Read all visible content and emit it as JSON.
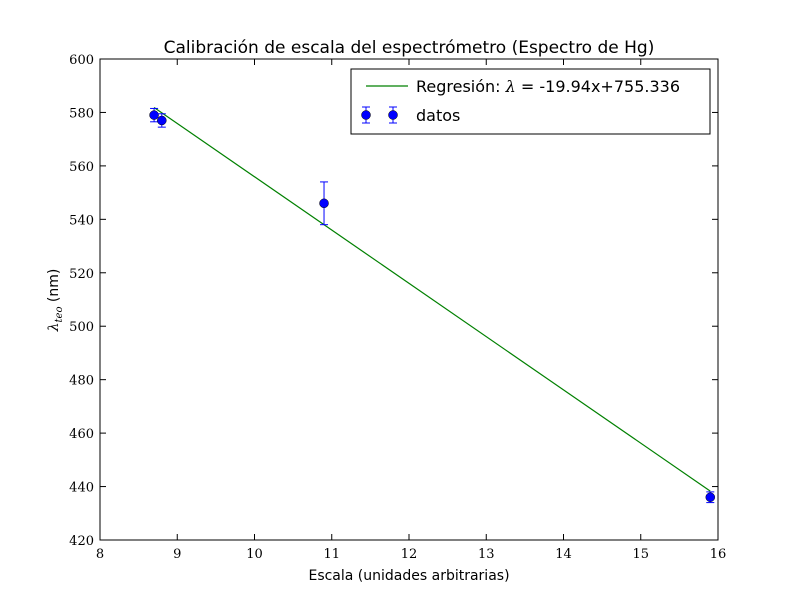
{
  "chart_data": {
    "type": "scatter",
    "title": "Calibración de escala del espectrómetro (Espectro de Hg)",
    "xlabel": "Escala (unidades arbitrarias)",
    "ylabel_symbol": "λ",
    "ylabel_subscript": "teo",
    "ylabel_unit": " (nm)",
    "xlim": [
      8,
      16
    ],
    "ylim": [
      420,
      600
    ],
    "xticks": [
      8,
      9,
      10,
      11,
      12,
      13,
      14,
      15,
      16
    ],
    "yticks": [
      420,
      440,
      460,
      480,
      500,
      520,
      540,
      560,
      580,
      600
    ],
    "grid": false,
    "legend_position": "top-right",
    "series": [
      {
        "name": "datos",
        "kind": "errorbar",
        "color": "#0000ff",
        "points": [
          {
            "x": 8.7,
            "y": 579,
            "err": 2.5
          },
          {
            "x": 8.8,
            "y": 577,
            "err": 2.5
          },
          {
            "x": 10.9,
            "y": 546,
            "err": 8
          },
          {
            "x": 15.9,
            "y": 436,
            "err": 2
          }
        ]
      },
      {
        "name": "Regresión: λ = -19.94x+755.336",
        "kind": "line",
        "color": "#008000",
        "slope": -19.94,
        "intercept": 755.336,
        "x_range": [
          8.7,
          15.9
        ]
      }
    ],
    "legend": [
      {
        "label_prefix": "Regresión: ",
        "label_symbol": "λ",
        "label_suffix": " = -19.94x+755.336",
        "kind": "line",
        "color": "#008000"
      },
      {
        "label": "datos",
        "kind": "marker",
        "color": "#0000ff"
      }
    ]
  }
}
